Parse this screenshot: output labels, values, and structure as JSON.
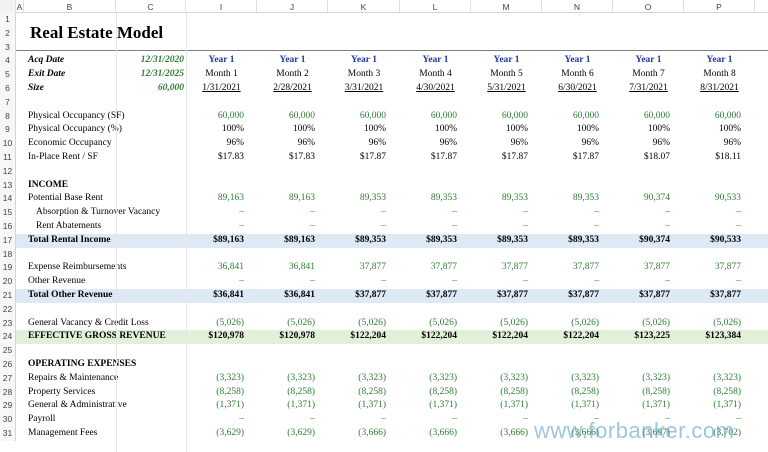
{
  "columns": [
    "A",
    "B",
    "C",
    "I",
    "J",
    "K",
    "L",
    "M",
    "N",
    "O",
    "P"
  ],
  "title": "Real Estate Model",
  "assumptions": {
    "acq_label": "Acq Date",
    "acq_value": "12/31/2020",
    "exit_label": "Exit Date",
    "exit_value": "12/31/2025",
    "size_label": "Size",
    "size_value": "60,000"
  },
  "periods": [
    {
      "year": "Year 1",
      "month": "Month 1",
      "date": "1/31/2021"
    },
    {
      "year": "Year 1",
      "month": "Month 2",
      "date": "2/28/2021"
    },
    {
      "year": "Year 1",
      "month": "Month 3",
      "date": "3/31/2021"
    },
    {
      "year": "Year 1",
      "month": "Month 4",
      "date": "4/30/2021"
    },
    {
      "year": "Year 1",
      "month": "Month 5",
      "date": "5/31/2021"
    },
    {
      "year": "Year 1",
      "month": "Month 6",
      "date": "6/30/2021"
    },
    {
      "year": "Year 1",
      "month": "Month 7",
      "date": "7/31/2021"
    },
    {
      "year": "Year 1",
      "month": "Month 8",
      "date": "8/31/2021"
    }
  ],
  "rows": [
    {
      "n": "1",
      "type": "blank"
    },
    {
      "n": "2",
      "type": "title"
    },
    {
      "n": "3",
      "type": "blank"
    },
    {
      "n": "4",
      "type": "periods-year"
    },
    {
      "n": "5",
      "type": "periods-month"
    },
    {
      "n": "6",
      "type": "periods-date"
    },
    {
      "n": "7",
      "type": "blank"
    },
    {
      "n": "8",
      "label": "Physical Occupancy (SF)",
      "style": "green",
      "values": [
        "60,000",
        "60,000",
        "60,000",
        "60,000",
        "60,000",
        "60,000",
        "60,000",
        "60,000"
      ]
    },
    {
      "n": "9",
      "label": "Physical Occupancy (%)",
      "style": "",
      "values": [
        "100%",
        "100%",
        "100%",
        "100%",
        "100%",
        "100%",
        "100%",
        "100%"
      ]
    },
    {
      "n": "10",
      "label": "Economic Occupancy",
      "style": "",
      "values": [
        "96%",
        "96%",
        "96%",
        "96%",
        "96%",
        "96%",
        "96%",
        "96%"
      ]
    },
    {
      "n": "11",
      "label": "In-Place Rent / SF",
      "style": "",
      "values": [
        "$17.83",
        "$17.83",
        "$17.87",
        "$17.87",
        "$17.87",
        "$17.87",
        "$18.07",
        "$18.11"
      ]
    },
    {
      "n": "12",
      "type": "blank"
    },
    {
      "n": "13",
      "label": "INCOME",
      "style": "bold",
      "values": []
    },
    {
      "n": "14",
      "label": "Potential Base Rent",
      "style": "green",
      "values": [
        "89,163",
        "89,163",
        "89,353",
        "89,353",
        "89,353",
        "89,353",
        "90,374",
        "90,533"
      ]
    },
    {
      "n": "15",
      "label": "Absorption & Turnover Vacancy",
      "indent": true,
      "style": "green",
      "values": [
        "–",
        "–",
        "–",
        "–",
        "–",
        "–",
        "–",
        "–"
      ]
    },
    {
      "n": "16",
      "label": "Rent Abatements",
      "indent": true,
      "style": "green",
      "values": [
        "–",
        "–",
        "–",
        "–",
        "–",
        "–",
        "–",
        "–"
      ]
    },
    {
      "n": "17",
      "label": "Total Rental Income",
      "style": "bold",
      "band": "blue",
      "values": [
        "$89,163",
        "$89,163",
        "$89,353",
        "$89,353",
        "$89,353",
        "$89,353",
        "$90,374",
        "$90,533"
      ]
    },
    {
      "n": "18",
      "type": "blank"
    },
    {
      "n": "19",
      "label": "Expense Reimbursements",
      "style": "green",
      "values": [
        "36,841",
        "36,841",
        "37,877",
        "37,877",
        "37,877",
        "37,877",
        "37,877",
        "37,877"
      ]
    },
    {
      "n": "20",
      "label": "Other Revenue",
      "style": "green",
      "values": [
        "–",
        "–",
        "–",
        "–",
        "–",
        "–",
        "–",
        "–"
      ]
    },
    {
      "n": "21",
      "label": "Total Other Revenue",
      "style": "bold",
      "band": "blue",
      "values": [
        "$36,841",
        "$36,841",
        "$37,877",
        "$37,877",
        "$37,877",
        "$37,877",
        "$37,877",
        "$37,877"
      ]
    },
    {
      "n": "22",
      "type": "blank"
    },
    {
      "n": "23",
      "label": "General Vacancy & Credit Loss",
      "style": "green",
      "values": [
        "(5,026)",
        "(5,026)",
        "(5,026)",
        "(5,026)",
        "(5,026)",
        "(5,026)",
        "(5,026)",
        "(5,026)"
      ]
    },
    {
      "n": "24",
      "label": "EFFECTIVE GROSS REVENUE",
      "style": "bold",
      "band": "green",
      "values": [
        "$120,978",
        "$120,978",
        "$122,204",
        "$122,204",
        "$122,204",
        "$122,204",
        "$123,225",
        "$123,384"
      ]
    },
    {
      "n": "25",
      "type": "blank"
    },
    {
      "n": "26",
      "label": "OPERATING EXPENSES",
      "style": "bold",
      "values": []
    },
    {
      "n": "27",
      "label": "Repairs & Maintenance",
      "style": "green",
      "values": [
        "(3,323)",
        "(3,323)",
        "(3,323)",
        "(3,323)",
        "(3,323)",
        "(3,323)",
        "(3,323)",
        "(3,323)"
      ]
    },
    {
      "n": "28",
      "label": "Property Services",
      "style": "green",
      "values": [
        "(8,258)",
        "(8,258)",
        "(8,258)",
        "(8,258)",
        "(8,258)",
        "(8,258)",
        "(8,258)",
        "(8,258)"
      ]
    },
    {
      "n": "29",
      "label": "General & Administrative",
      "style": "green",
      "values": [
        "(1,371)",
        "(1,371)",
        "(1,371)",
        "(1,371)",
        "(1,371)",
        "(1,371)",
        "(1,371)",
        "(1,371)"
      ]
    },
    {
      "n": "30",
      "label": "Payroll",
      "style": "green",
      "values": [
        "–",
        "–",
        "–",
        "–",
        "–",
        "–",
        "–",
        "–"
      ]
    },
    {
      "n": "31",
      "label": "Management Fees",
      "style": "green",
      "values": [
        "(3,629)",
        "(3,629)",
        "(3,666)",
        "(3,666)",
        "(3,666)",
        "(3,666)",
        "(3,697)",
        "(3,702)"
      ]
    }
  ],
  "watermark": "www.forbanker.com"
}
